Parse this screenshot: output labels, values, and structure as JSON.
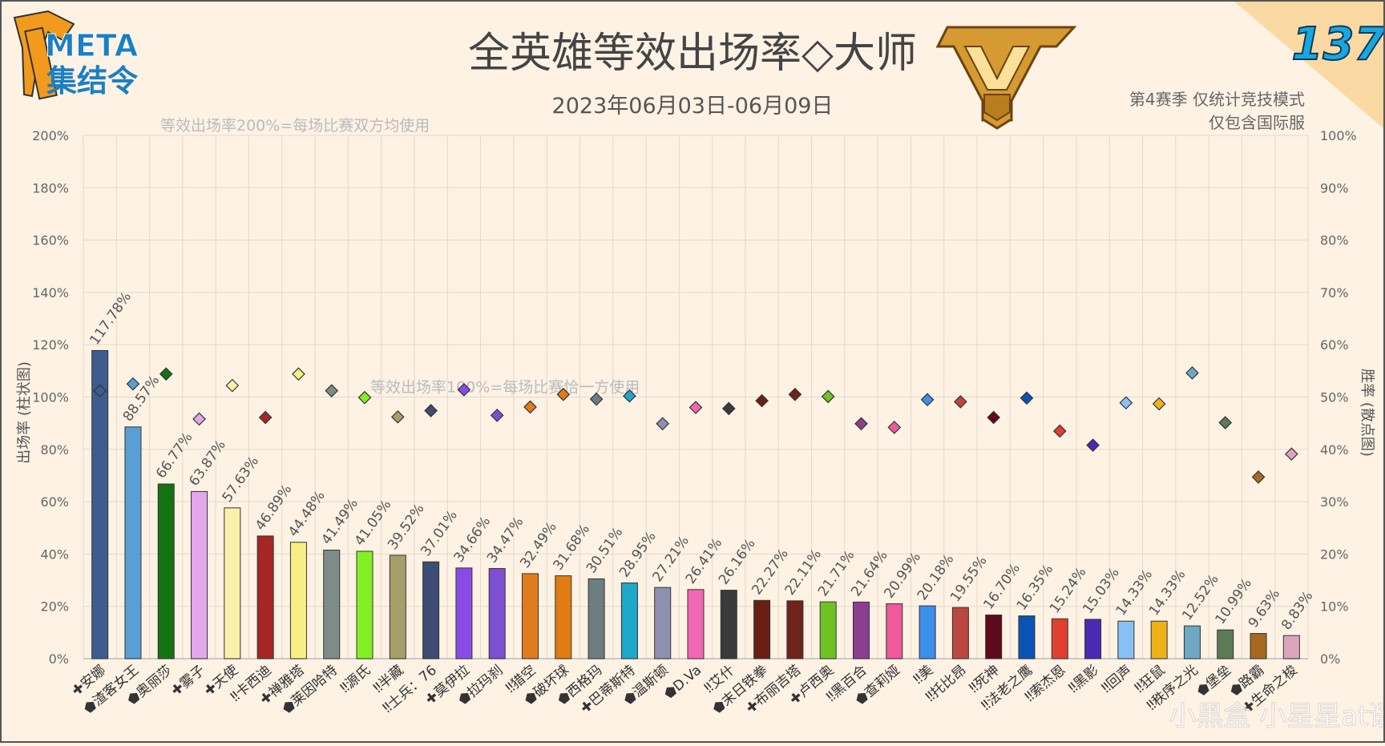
{
  "header": {
    "logo_line1": "META",
    "logo_line2": "集结令",
    "title": "全英雄等效出场率◇大师",
    "date_range": "2023年06月03日-06月09日",
    "issue_number": "137",
    "note_line1": "第4赛季 仅统计竞技模式",
    "note_line2": "仅包含国际服"
  },
  "watermark": "小黑盒 小星星at语",
  "chart_data": {
    "type": "bar",
    "ylabel": "出场率 (柱状图)",
    "y2label": "胜率 (散点图)",
    "ylim": [
      0,
      200
    ],
    "y2lim": [
      0,
      100
    ],
    "yticks": [
      "0%",
      "20%",
      "40%",
      "60%",
      "80%",
      "100%",
      "120%",
      "140%",
      "160%",
      "180%",
      "200%"
    ],
    "y2ticks": [
      "0%",
      "10%",
      "20%",
      "30%",
      "40%",
      "50%",
      "60%",
      "70%",
      "80%",
      "90%",
      "100%"
    ],
    "annotations": [
      {
        "text": "等效出场率200%=每场比赛双方均使用",
        "y": 200
      },
      {
        "text": "等效出场率100%=每场比赛恰一方使用",
        "y": 100
      }
    ],
    "grid": true,
    "role_icons": {
      "tank": "✚",
      "support": "⬟",
      "damage": "‼"
    },
    "categories": [
      "✚安娜",
      "⬟渣客女王",
      "⬟奥丽莎",
      "✚雾子",
      "✚天使",
      "‼卡西迪",
      "✚禅雅塔",
      "⬟莱因哈特",
      "‼源氏",
      "‼半藏",
      "‼士兵：76",
      "✚莫伊拉",
      "⬟拉玛刹",
      "‼猎空",
      "⬟破坏球",
      "⬟西格玛",
      "✚巴蒂斯特",
      "⬟温斯顿",
      "⬟D.Va",
      "‼艾什",
      "⬟末日铁拳",
      "✚布丽吉塔",
      "✚卢西奥",
      "‼黑百合",
      "⬟查莉娅",
      "‼美",
      "‼托比昂",
      "‼死神",
      "‼法老之鹰",
      "‼索杰恩",
      "‼黑影",
      "‼回声",
      "‼狂鼠",
      "‼秩序之光",
      "⬟堡垒",
      "⬟路霸",
      "✚生命之梭"
    ],
    "series": [
      {
        "values": [
          117.78,
          88.57,
          66.77,
          63.87,
          57.63,
          46.89,
          44.48,
          41.49,
          41.05,
          39.52,
          37.01,
          34.66,
          34.47,
          32.49,
          31.68,
          30.51,
          28.95,
          27.21,
          26.41,
          26.16,
          22.27,
          22.11,
          21.71,
          21.64,
          20.99,
          20.18,
          19.55,
          16.7,
          16.35,
          15.24,
          15.03,
          14.33,
          14.33,
          12.52,
          10.99,
          9.63,
          8.83
        ],
        "labels": [
          "117.78%",
          "88.57%",
          "66.77%",
          "63.87%",
          "57.63%",
          "46.89%",
          "44.48%",
          "41.49%",
          "41.05%",
          "39.52%",
          "37.01%",
          "34.66%",
          "34.47%",
          "32.49%",
          "31.68%",
          "30.51%",
          "28.95%",
          "27.21%",
          "26.41%",
          "26.16%",
          "22.27%",
          "22.11%",
          "21.71%",
          "21.64%",
          "20.99%",
          "20.18%",
          "19.55%",
          "16.70%",
          "16.35%",
          "15.24%",
          "15.03%",
          "14.33%",
          "14.33%",
          "12.52%",
          "10.99%",
          "9.63%",
          "8.83%"
        ]
      },
      {
        "type": "scatter",
        "values": [
          51.2,
          52.5,
          54.4,
          45.8,
          52.2,
          46.1,
          54.4,
          51.2,
          49.9,
          46.2,
          47.4,
          51.4,
          46.5,
          48.1,
          50.5,
          49.6,
          50.2,
          44.9,
          48.0,
          47.8,
          49.3,
          50.5,
          50.1,
          44.9,
          44.2,
          49.5,
          49.1,
          46.1,
          49.8,
          43.5,
          40.8,
          48.9,
          48.7,
          54.6,
          45.1,
          34.7,
          39.1
        ]
      }
    ],
    "bar_colors": [
      "#3e5c8e",
      "#5a9fd4",
      "#137313",
      "#e3a8ec",
      "#fbf0a9",
      "#a62525",
      "#f7ef86",
      "#7d8c87",
      "#82f023",
      "#a79f69",
      "#3e4b72",
      "#8a4be5",
      "#7d4fd1",
      "#e07c1e",
      "#e07c12",
      "#6e7d7f",
      "#1fa8c9",
      "#8f91b0",
      "#f068b1",
      "#3a3a3a",
      "#6a1f15",
      "#6e2418",
      "#6fc225",
      "#8d3f8f",
      "#f05a9a",
      "#3c8fea",
      "#bc4640",
      "#5e0a1a",
      "#0b53b3",
      "#e04030",
      "#4a2ab5",
      "#88c2f5",
      "#f0b21a",
      "#6fa8c2",
      "#5c7a58",
      "#a86820",
      "#dba6bb"
    ]
  }
}
